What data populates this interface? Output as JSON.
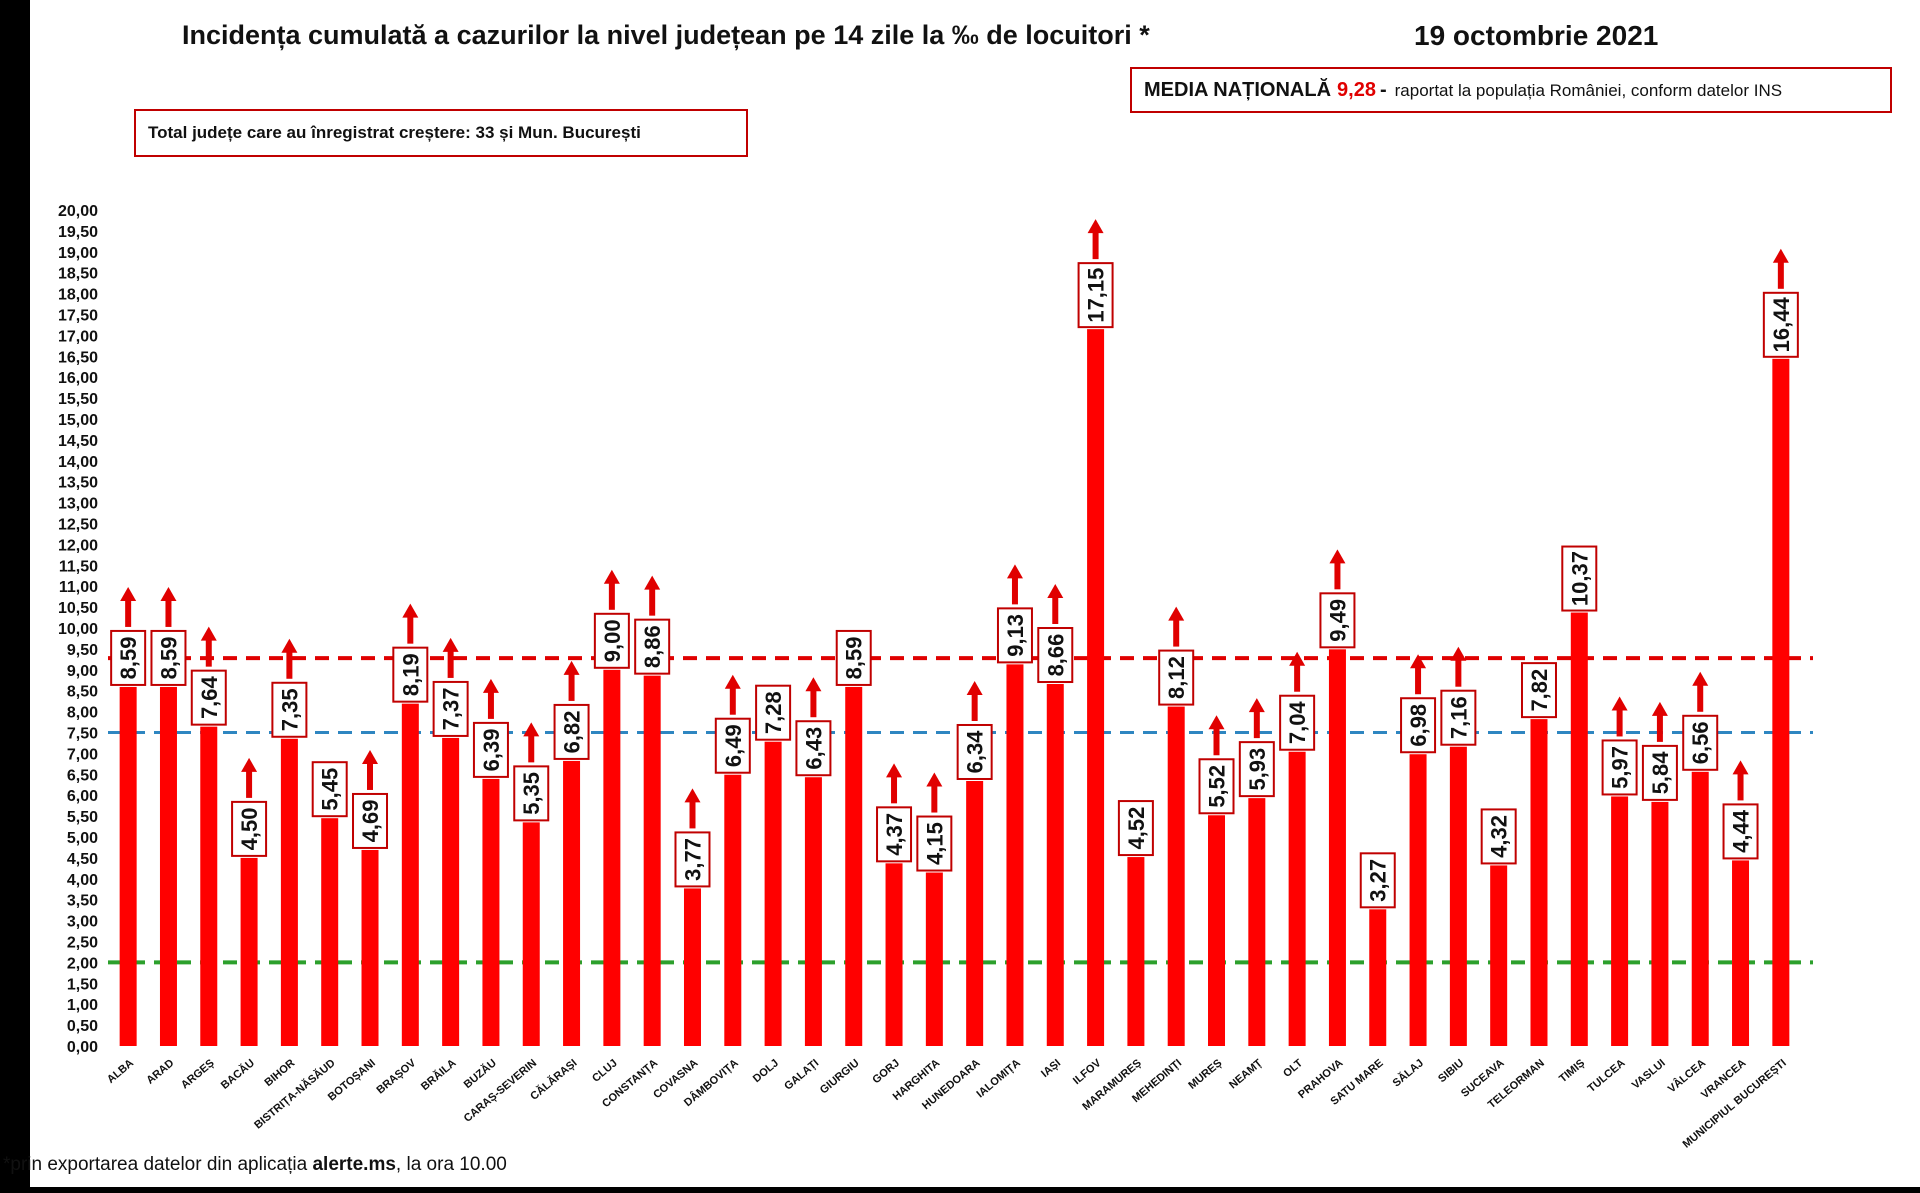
{
  "chart_data": {
    "type": "bar",
    "title": "Incidența cumulată a cazurilor la nivel județean pe 14 zile la ‰ de locuitori *",
    "date": "19 octombrie 2021",
    "categories": [
      "ALBA",
      "ARAD",
      "ARGEȘ",
      "BACĂU",
      "BIHOR",
      "BISTRIȚA-NĂSĂUD",
      "BOTOȘANI",
      "BRAȘOV",
      "BRĂILA",
      "BUZĂU",
      "CARAȘ-SEVERIN",
      "CĂLĂRAȘI",
      "CLUJ",
      "CONSTANȚA",
      "COVASNA",
      "DÂMBOVIȚA",
      "DOLJ",
      "GALAȚI",
      "GIURGIU",
      "GORJ",
      "HARGHITA",
      "HUNEDOARA",
      "IALOMIȚA",
      "IAȘI",
      "ILFOV",
      "MARAMUREȘ",
      "MEHEDINȚI",
      "MUREȘ",
      "NEAMȚ",
      "OLT",
      "PRAHOVA",
      "SATU MARE",
      "SĂLAJ",
      "SIBIU",
      "SUCEAVA",
      "TELEORMAN",
      "TIMIȘ",
      "TULCEA",
      "VASLUI",
      "VÂLCEA",
      "VRANCEA",
      "MUNICIPIUL BUCUREȘTI"
    ],
    "values": [
      8.59,
      8.59,
      7.64,
      4.5,
      7.35,
      5.45,
      4.69,
      8.19,
      7.37,
      6.39,
      5.35,
      6.82,
      9.0,
      8.86,
      3.77,
      6.49,
      7.28,
      6.43,
      8.59,
      4.37,
      4.15,
      6.34,
      9.13,
      8.66,
      17.15,
      4.52,
      8.12,
      5.52,
      5.93,
      7.04,
      9.49,
      3.27,
      6.98,
      7.16,
      4.32,
      7.82,
      10.37,
      5.97,
      5.84,
      6.56,
      4.44,
      16.44
    ],
    "labels": [
      "8,59",
      "8,59",
      "7,64",
      "4,50",
      "7,35",
      "5,45",
      "4,69",
      "8,19",
      "7,37",
      "6,39",
      "5,35",
      "6,82",
      "9,00",
      "8,86",
      "3,77",
      "6,49",
      "7,28",
      "6,43",
      "8,59",
      "4,37",
      "4,15",
      "6,34",
      "9,13",
      "8,66",
      "17,15",
      "4,52",
      "8,12",
      "5,52",
      "5,93",
      "7,04",
      "9,49",
      "3,27",
      "6,98",
      "7,16",
      "4,32",
      "7,82",
      "10,37",
      "5,97",
      "5,84",
      "6,56",
      "4,44",
      "16,44"
    ],
    "increase": [
      true,
      true,
      true,
      true,
      true,
      false,
      true,
      true,
      true,
      true,
      true,
      true,
      true,
      true,
      true,
      true,
      false,
      true,
      false,
      true,
      true,
      true,
      true,
      true,
      true,
      false,
      true,
      true,
      true,
      true,
      true,
      false,
      true,
      true,
      false,
      false,
      false,
      true,
      true,
      true,
      true,
      true
    ],
    "ylim": [
      0,
      20
    ],
    "ytick_step": 0.5,
    "yticks": [
      "0,00",
      "0,50",
      "1,00",
      "1,50",
      "2,00",
      "2,50",
      "3,00",
      "3,50",
      "4,00",
      "4,50",
      "5,00",
      "5,50",
      "6,00",
      "6,50",
      "7,00",
      "7,50",
      "8,00",
      "8,50",
      "9,00",
      "9,50",
      "10,00",
      "10,50",
      "11,00",
      "11,50",
      "12,00",
      "12,50",
      "13,00",
      "13,50",
      "14,00",
      "14,50",
      "15,00",
      "15,50",
      "16,00",
      "16,50",
      "17,00",
      "17,50",
      "18,00",
      "18,50",
      "19,00",
      "19,50",
      "20,00"
    ],
    "reference_lines": [
      {
        "value": 9.28,
        "color": "#e00000"
      },
      {
        "value": 7.5,
        "color": "#2e86c1"
      },
      {
        "value": 2.0,
        "color": "#2ca02c"
      }
    ],
    "bar_color": "#ff0000",
    "arrow_color": "#e00000",
    "grid": false
  },
  "national": {
    "label": "MEDIA NAȚIONALĂ",
    "value": "9,28",
    "dash": "-",
    "note": "raportat la populația României, conform datelor INS"
  },
  "total_box": "Total județe care au înregistrat creștere:  33 și Mun. București",
  "footnote": {
    "prefix": "*prin exportarea datelor din aplicația ",
    "app": "alerte.ms",
    "suffix": ", la ora 10.00"
  }
}
